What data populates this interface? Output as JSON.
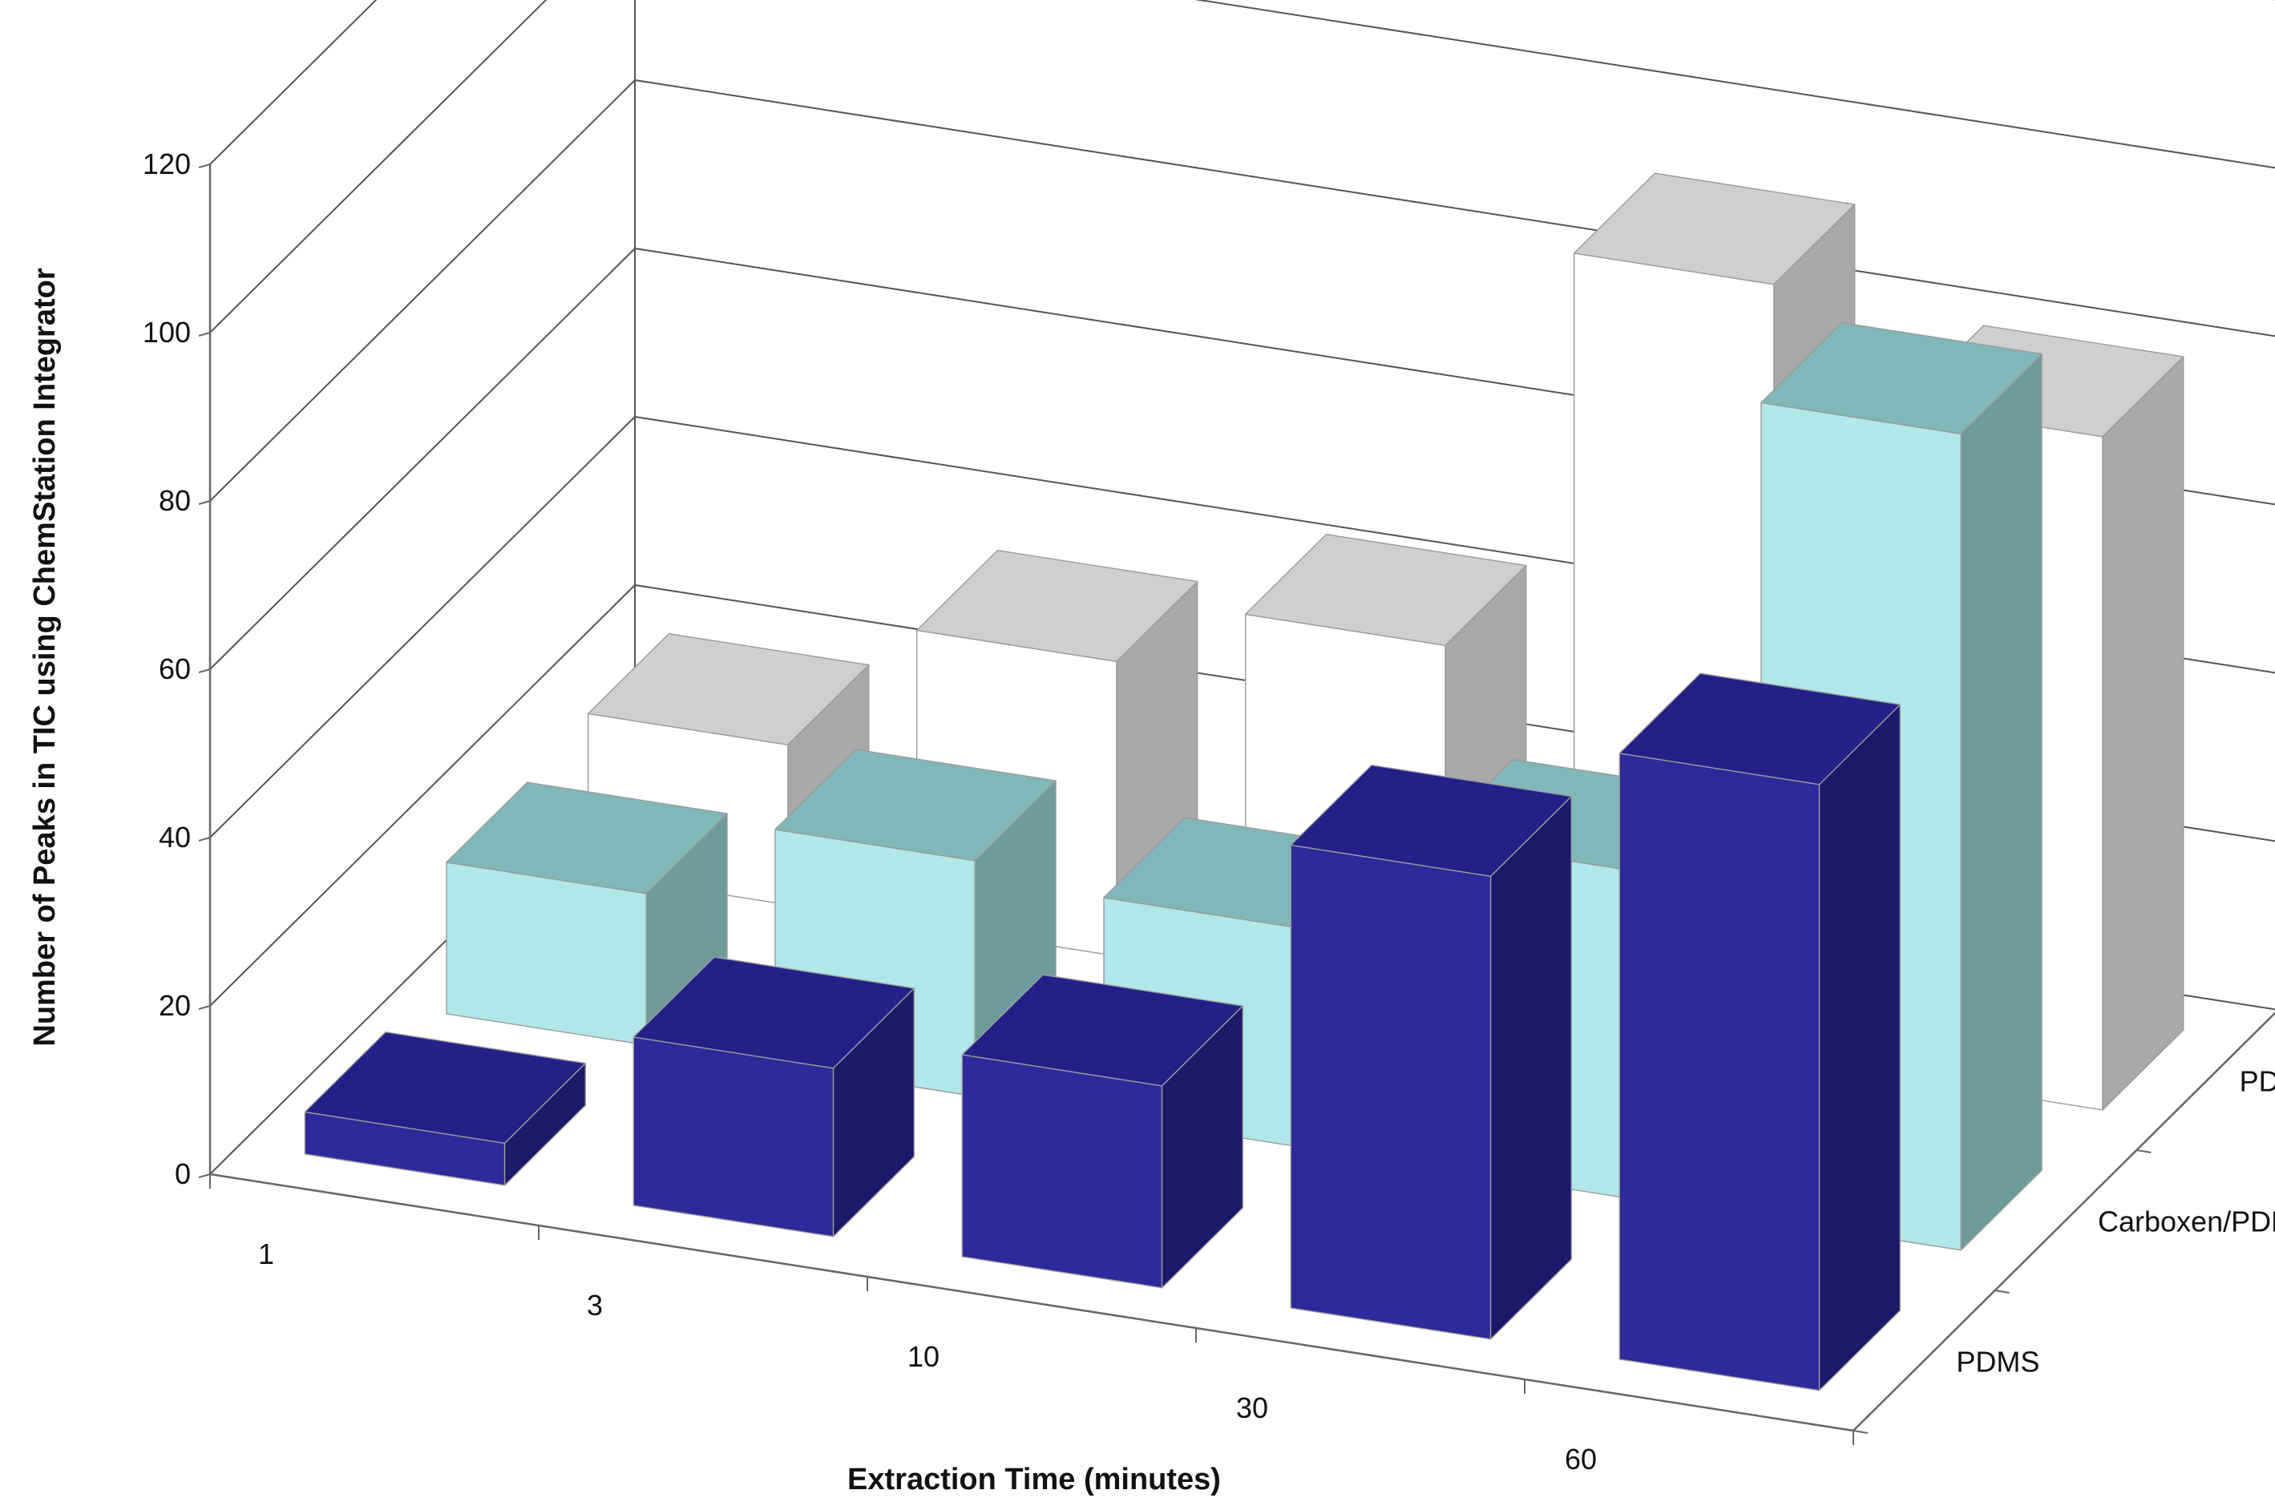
{
  "chart_data": {
    "type": "bar",
    "title": "",
    "subtitle": "",
    "xlabel": "Extraction Time (minutes)",
    "ylabel": "Number of Peaks in TIC using ChemStation Integrator",
    "categories": [
      "1",
      "3",
      "10",
      "30",
      "60"
    ],
    "ylim": [
      0,
      120
    ],
    "yticks": [
      "0",
      "20",
      "40",
      "60",
      "80",
      "100",
      "120"
    ],
    "grid": true,
    "legend": "depth axis",
    "series": [
      {
        "name": "PDMS",
        "values": [
          5,
          20,
          24,
          55,
          72
        ],
        "colors": {
          "front": "#2d2a9b",
          "side": "#1b196a",
          "top": "#232188"
        }
      },
      {
        "name": "Carboxen/PDMS",
        "values": [
          18,
          28,
          26,
          39,
          97
        ],
        "colors": {
          "front": "#b0e7e8",
          "side": "#6f9a9c",
          "top": "#80b8ba"
        }
      },
      {
        "name": "PDMS/DVB",
        "values": [
          19,
          35,
          43,
          92,
          80
        ],
        "colors": {
          "front": "#ffffff",
          "side": "#a8a8a8",
          "top": "#cfcfcf"
        }
      }
    ]
  }
}
